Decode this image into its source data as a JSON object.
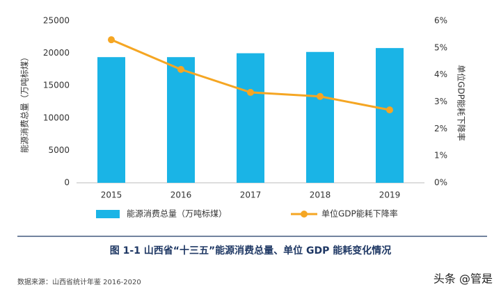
{
  "chart_data": {
    "type": "bar",
    "y_label": "能源消费总量（万吨标煤）",
    "y2_label": "单位GDP能耗下降率",
    "categories": [
      "2015",
      "2016",
      "2017",
      "2018",
      "2019"
    ],
    "series": [
      {
        "name": "能源消费总量（万吨标煤）",
        "type": "bar",
        "color": "#1ab4e6",
        "values": [
          19400,
          19400,
          20000,
          20200,
          20800
        ]
      },
      {
        "name": "单位GDP能耗下降率",
        "type": "line",
        "axis": "y2",
        "color": "#f5a623",
        "values": [
          5.3,
          4.2,
          3.35,
          3.2,
          2.7
        ]
      }
    ],
    "ylim": [
      0,
      25000
    ],
    "yticks": [
      0,
      5000,
      10000,
      15000,
      20000,
      25000
    ],
    "y2lim": [
      0,
      6
    ],
    "y2ticks": [
      {
        "value": 0,
        "label": "0%"
      },
      {
        "value": 1,
        "label": "1%"
      },
      {
        "value": 2,
        "label": "2%"
      },
      {
        "value": 3,
        "label": "3%"
      },
      {
        "value": 4,
        "label": "4%"
      },
      {
        "value": 5,
        "label": "5%"
      },
      {
        "value": 6,
        "label": "6%"
      }
    ],
    "grid": false
  },
  "caption": "图 1-1  山西省“十三五”能源消费总量、单位 GDP 能耗变化情况",
  "source": "数据来源：山西省统计年鉴 2016-2020",
  "watermark": "头条 @管是"
}
